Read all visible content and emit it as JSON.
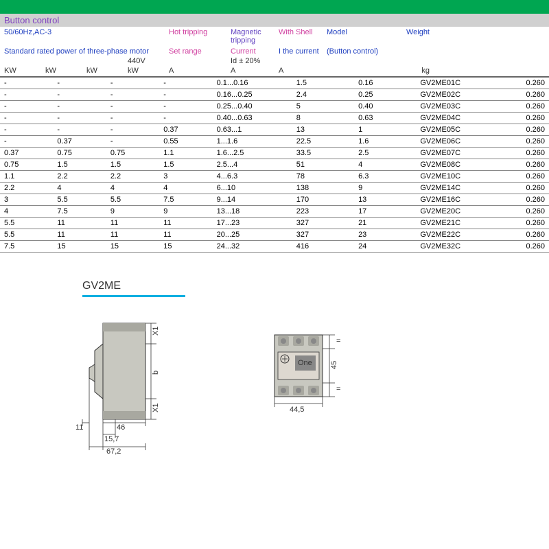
{
  "header": {
    "banner_text": "",
    "banner_bg": "#00a651",
    "subheader": "Button control",
    "line1_left": "50/60Hz,AC-3",
    "line2_left": "Standard rated power of three-phase motor",
    "hot_tripping": "Hot tripping",
    "set_range": "Set range",
    "magnetic_tripping": "Magnetic tripping",
    "current": "Current",
    "id20": "Id ± 20%",
    "with_shell": "With Shell",
    "i_the_current": "I the current",
    "model": "Model",
    "button_control": "(Button control)",
    "weight": "Weight",
    "v440": "440V"
  },
  "units": {
    "u0": "KW",
    "u1": "kW",
    "u2": "kW",
    "u3": "kW",
    "u4": "A",
    "u5": "A",
    "u6": "A",
    "u7": "",
    "u8": "kg"
  },
  "rows": [
    [
      "-",
      "-",
      "-",
      "-",
      "0.1...0.16",
      "1.5",
      "0.16",
      "GV2ME01C",
      "0.260"
    ],
    [
      "-",
      "-",
      "-",
      "-",
      "0.16...0.25",
      "2.4",
      "0.25",
      "GV2ME02C",
      "0.260"
    ],
    [
      "-",
      "-",
      "-",
      "-",
      "0.25...0.40",
      "5",
      "0.40",
      "GV2ME03C",
      "0.260"
    ],
    [
      "-",
      "-",
      "-",
      "-",
      "0.40...0.63",
      "8",
      "0.63",
      "GV2ME04C",
      "0.260"
    ],
    [
      "-",
      "-",
      "-",
      "0.37",
      "0.63...1",
      "13",
      "1",
      "GV2ME05C",
      "0.260"
    ],
    [
      "-",
      "0.37",
      "-",
      "0.55",
      "1...1.6",
      "22.5",
      "1.6",
      "GV2ME06C",
      "0.260"
    ],
    [
      "0.37",
      "0.75",
      "0.75",
      "1.1",
      "1.6...2.5",
      "33.5",
      "2.5",
      "GV2ME07C",
      "0.260"
    ],
    [
      "0.75",
      "1.5",
      "1.5",
      "1.5",
      "2.5...4",
      "51",
      "4",
      "GV2ME08C",
      "0.260"
    ],
    [
      "1.1",
      "2.2",
      "2.2",
      "3",
      "4...6.3",
      "78",
      "6.3",
      "GV2ME10C",
      "0.260"
    ],
    [
      "2.2",
      "4",
      "4",
      "4",
      "6...10",
      "138",
      "9",
      "GV2ME14C",
      "0.260"
    ],
    [
      "3",
      "5.5",
      "5.5",
      "7.5",
      "9...14",
      "170",
      "13",
      "GV2ME16C",
      "0.260"
    ],
    [
      "4",
      "7.5",
      "9",
      "9",
      "13...18",
      "223",
      "17",
      "GV2ME20C",
      "0.260"
    ],
    [
      "5.5",
      "11",
      "11",
      "11",
      "17...23",
      "327",
      "21",
      "GV2ME21C",
      "0.260"
    ],
    [
      "5.5",
      "11",
      "11",
      "11",
      "20...25",
      "327",
      "23",
      "GV2ME22C",
      "0.260"
    ],
    [
      "7.5",
      "15",
      "15",
      "15",
      "24...32",
      "416",
      "24",
      "GV2ME32C",
      "0.260"
    ]
  ],
  "diagram": {
    "title": "GV2ME",
    "side": {
      "w46": "46",
      "w157": "15,7",
      "w672": "67,2",
      "w11": "11",
      "x1top": "X1",
      "x1bot": "X1",
      "b": "b"
    },
    "front": {
      "h45": "45",
      "w445": "44,5",
      "equ": "=",
      "one": "One"
    },
    "colors": {
      "rule": "#00aee0",
      "body": "#c8c8c0",
      "shade": "#a8a8a0",
      "stroke": "#333333"
    }
  }
}
